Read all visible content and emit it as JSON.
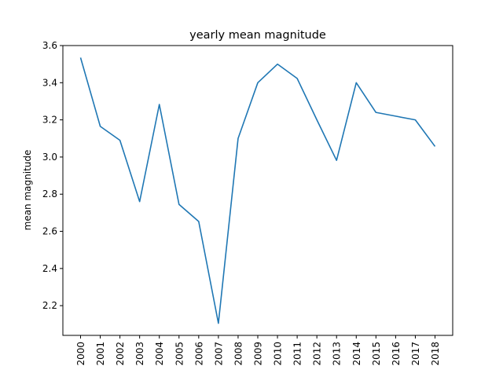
{
  "chart_data": {
    "type": "line",
    "title": "yearly mean magnitude",
    "xlabel": "",
    "ylabel": "mean magnitude",
    "x": [
      "2000",
      "2001",
      "2002",
      "2003",
      "2004",
      "2005",
      "2006",
      "2007",
      "2008",
      "2009",
      "2010",
      "2011",
      "2012",
      "2013",
      "2014",
      "2015",
      "2016",
      "2017",
      "2018"
    ],
    "series": [
      {
        "values": [
          3.535,
          3.165,
          3.09,
          2.76,
          3.283,
          2.745,
          2.653,
          2.105,
          3.1,
          3.4,
          3.5,
          3.423,
          3.2,
          2.982,
          3.4,
          3.24,
          3.22,
          3.2,
          3.057
        ],
        "color": "#1f77b4"
      }
    ],
    "yticks": [
      "2.2",
      "2.4",
      "2.6",
      "2.8",
      "3.0",
      "3.2",
      "3.4",
      "3.6"
    ],
    "ylim": [
      2.04,
      3.6
    ],
    "grid": false,
    "legend": "none"
  }
}
